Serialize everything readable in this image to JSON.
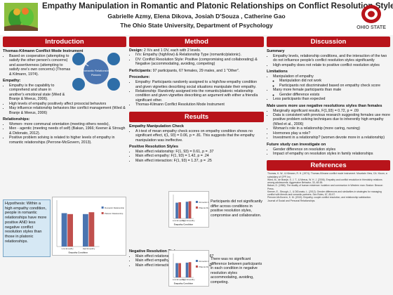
{
  "header": {
    "title": "Empathy Manipulation in Romantic and Platonic Relationships on Conflict Resolution Styles",
    "authors": "Gabrielle Azmy, Elena Dikova, Josiah D'Souza , Catherine Gao",
    "affiliation": "The Ohio State University, Department of Psychology",
    "logo_right_text": "OHIO STATE"
  },
  "introduction": {
    "heading": "Introduction",
    "tki_title": "Thomas-Kilmann Conflict Mode Instrument",
    "tki_bullets": [
      "Based on cooperation (attempting to satisfy the other person's concerns) and assertiveness (attempting to satisfy one's own concerns) (Thomas & Kilmann, 1974)."
    ],
    "empathy_title": "Empathy:",
    "empathy_bullets": [
      "Empathy is the capability to comprehend and share in another's emotional state (Wied & Branje & Meeus, 2006).",
      "High levels of empathy positively affect prosocial behaviors",
      "May influence relationship behaviors like conflict management (Wied & Branje & Meeus, 2006)"
    ],
    "relationships_title": "Relationships:",
    "relationships_bullets": [
      "Women- more communal orientation (meeting others needs),",
      "Men - agentic (meeting needs of self) (Bakan, 1966; Keener & Strough & Didonato, 2012).",
      "Positive problem solving is related to higher levels of empathy in romantic relationships (Perrone-McGovern, 2013)."
    ],
    "diagram_labels": [
      "Romantic Relationship",
      "Platonic"
    ],
    "hypothesis": "Hypothesis: Within a high empathy condition, people in romantic relationships have more positive AND less negative conflict resolution styles than those in platonic relationships."
  },
  "method": {
    "heading": "Method",
    "design_title": "Design:",
    "design_text": "2 IVs and 1 DV, each with 2 levels.",
    "design_bullets": [
      "IVs: Empathy (high/low) & Relationship Type (romantic/platonic).",
      "DV: Conflict Resolution Style: Positive (compromising and collaborating) & Negative (accommodating, avoiding, competing)"
    ],
    "participants_title": "Participants:",
    "participants_text": "97 participants, 67 females, 29 males, and 1 \"Other\".",
    "procedure_title": "Procedure:",
    "procedure_bullets": [
      "Empathy: Participants randomly assigned to a high/low empathy condition and given vignettes describing social situations manipulate their empathy.",
      "Relationship: Randomly assigned into the romantic/platonic relationship condition and given vignettes describing an argument with either a friend/a significant other.",
      "Thomas-Kilmann Conflict Resolution Mode Instrument"
    ]
  },
  "results": {
    "heading": "Results",
    "check_title": "Empathy Manipulation Check",
    "check_bullets": [
      "A t-test of mean empathy check scores on empathy condition shows no significant effect, t(1, 93) = 0.06, p = .81. This suggests that the empathy manipulation was ineffective."
    ],
    "positive_title": "Positive Resolution Styles",
    "positive_effects": [
      "Main effect relationship:   F(1, 93) = 0.61, p = .37",
      "Main effect empathy:         F(1, 93) = 1.42, p = .24",
      "Main effect interaction:      F(1, 93) = 1.37, p = .25"
    ],
    "positive_note": "Participants did not significantly differ across conditions in positive resolution styles, compromise and collaboration.",
    "negative_title": "Negative Resolution Styles",
    "negative_effects": [
      "Main effect relationship:   F(1, 93) = 0.19, p = .67",
      "Main effect empathy:         F(1, 93) = 0.93, p = .34",
      "Main effect interaction:      F(1, 93) = 0.42, p = .52"
    ],
    "negative_note": "There was no significant difference between participants in each condition in negative resolution styles accommodating, avoiding, competing."
  },
  "charts": {
    "legend": [
      "Romantic Relationship",
      "Platonic Relationship"
    ],
    "categories": [
      "Low Empathy",
      "High Empathy"
    ],
    "xlabel": "Empathy Condition",
    "colors": [
      "#4a74b0",
      "#c0504d"
    ]
  },
  "chart_data": [
    {
      "type": "bar",
      "categories": [
        "Low Empathy",
        "High Empathy"
      ],
      "series": [
        {
          "name": "Romantic Relationship",
          "values": [
            3.6,
            3.5
          ]
        },
        {
          "name": "Platonic Relationship",
          "values": [
            3.5,
            3.7
          ]
        }
      ],
      "xlabel": "Empathy Condition",
      "ylim": [
        0,
        5
      ]
    },
    {
      "type": "bar",
      "categories": [
        "Low Empathy",
        "High Empathy"
      ],
      "series": [
        {
          "name": "Romantic Relationship",
          "values": [
            3.3,
            3.5
          ]
        },
        {
          "name": "Platonic Relationship",
          "values": [
            3.4,
            3.6
          ]
        }
      ],
      "xlabel": "Empathy Condition",
      "ylim": [
        0,
        5
      ]
    },
    {
      "type": "bar",
      "categories": [
        "Low Empathy",
        "High Empathy"
      ],
      "series": [
        {
          "name": "Romantic Relationship",
          "values": [
            3.0,
            3.1
          ]
        },
        {
          "name": "Platonic Relationship",
          "values": [
            3.0,
            3.2
          ]
        }
      ],
      "xlabel": "Empathy Condition",
      "ylim": [
        0,
        5
      ]
    }
  ],
  "discussion": {
    "heading": "Discussion",
    "summary_title": "Summary",
    "summary_bullets": [
      "Empathy levels, relationship conditions, and the interaction of the two do not influence people's conflict resolution styles significantly",
      "High empathy does not relate to positive conflict resolution styles"
    ],
    "limitations_title": "Limitations",
    "limitations_items": [
      {
        "text": "Manipulation of empathy",
        "sub": [
          "Manipulation did not work",
          "Participants not discriminated based on empathy check score"
        ]
      },
      {
        "text": "Many more female participants than male",
        "sub": [
          "Gender difference exists"
        ]
      },
      {
        "text": "Less participants than expected",
        "sub": []
      }
    ],
    "trends_title": "Male users more use negative resolutions styles than females",
    "trends_bullets": [
      "Marginally significant results, F(1,93) = 0.72, p = .09",
      "Data is consistent with previous research suggesting females use more positive problem solving techniques due to inherently high empathy (Wied et al., 2006)",
      "Woman's role in a relationship (more caring, nursing)",
      "Hormones play a role?",
      "Investment in a relationship? (women devote more in a relationship)"
    ],
    "future_title": "Future study can investigate on",
    "future_bullets": [
      "Gender difference on resolution styles",
      "Impact of empathy on resolution styles in family relationships"
    ]
  },
  "references": {
    "heading": "References",
    "items": [
      "Thomas, K. W., & Kilmann, R. H. (1974). Thomas-Kilmann conflict mode instrument. Mountain View, CA: Xicom, a subsidiary of CPP, Inc.",
      "Wied, M., de Branje, S. J. T., & Meeus, W. H. J. (2006). Empathy and conflict resolution in friendship relations among adolescents. Aggressive Behavior, 33, 48-55.",
      "Bakan, D. (1966). The duality of human existence: Isolation and communion in Western man. Boston: Beacon Press.",
      "Keener, E., Strough, J., & DiDonato, L. (2012). Gender differences and similarities in strategies for managing conflict with friends and romantic partners. Sex Roles, 67, 83-97.",
      "Perrone-McGovern, K. M. (2013). Empathy, couple conflict resolution, and relationship satisfaction.",
      "Journal of Social and Personal Relationships."
    ]
  }
}
